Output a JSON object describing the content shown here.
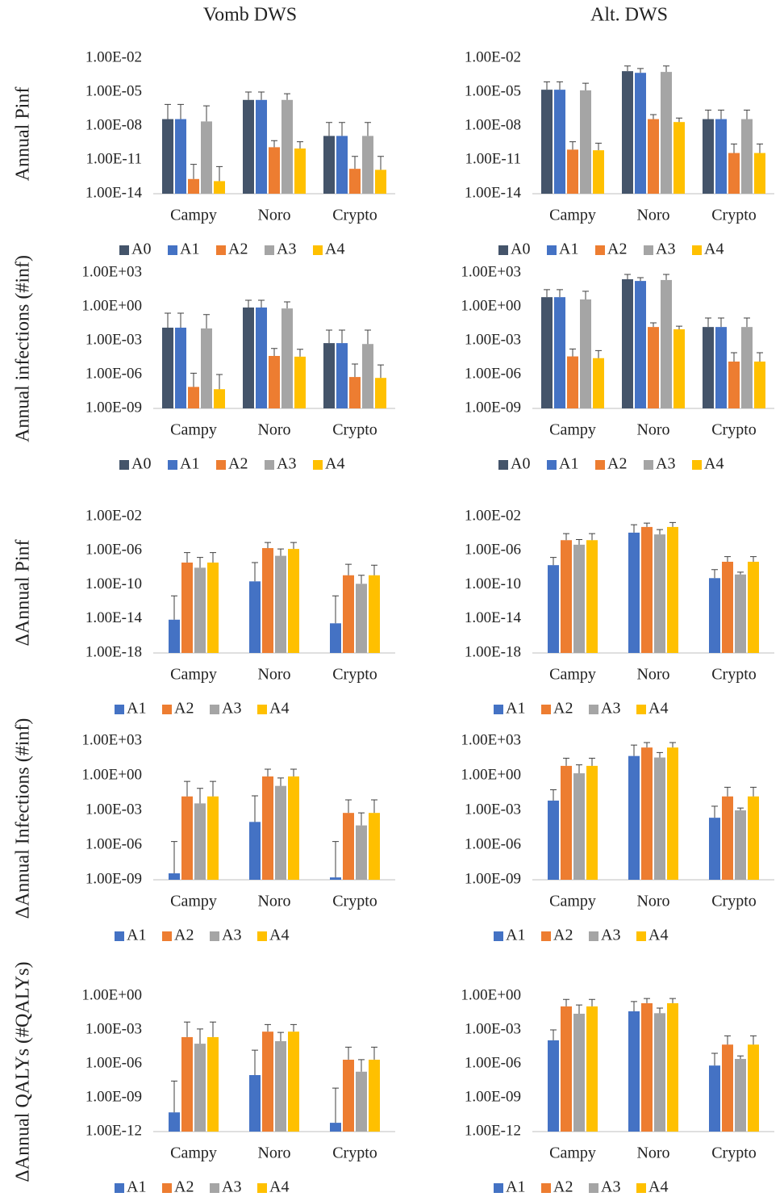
{
  "chart_data": [
    {
      "type": "bar",
      "title": "Vomb DWS",
      "ylabel": "Annual Pinf",
      "log_scale": true,
      "grid": false,
      "categories": [
        "Campy",
        "Noro",
        "Crypto"
      ],
      "ylim": [
        1e-14,
        0.01
      ],
      "yticks": [
        {
          "value": 1e-14,
          "label": "1.00E-14"
        },
        {
          "value": 1e-11,
          "label": "1.00E-11"
        },
        {
          "value": 1e-08,
          "label": "1.00E-08"
        },
        {
          "value": 1e-05,
          "label": "1.00E-05"
        },
        {
          "value": 0.01,
          "label": "1.00E-02"
        }
      ],
      "series": [
        {
          "name": "A0",
          "color": "#44546a",
          "values": [
            4e-08,
            2e-06,
            1.3e-09
          ],
          "error_upper": [
            8e-07,
            1e-05,
            2e-08
          ]
        },
        {
          "name": "A1",
          "color": "#4472c4",
          "values": [
            4e-08,
            2e-06,
            1.3e-09
          ],
          "error_upper": [
            8e-07,
            1e-05,
            2e-08
          ]
        },
        {
          "name": "A2",
          "color": "#ed7d31",
          "values": [
            2e-13,
            1.3e-10,
            1.6e-12
          ],
          "error_upper": [
            4e-12,
            5e-10,
            2e-11
          ]
        },
        {
          "name": "A3",
          "color": "#a5a5a5",
          "values": [
            2.5e-08,
            2e-06,
            1.3e-09
          ],
          "error_upper": [
            6e-07,
            7e-06,
            2e-08
          ]
        },
        {
          "name": "A4",
          "color": "#ffc000",
          "values": [
            1.3e-13,
            1e-10,
            1.3e-12
          ],
          "error_upper": [
            2.5e-12,
            4e-10,
            2e-11
          ]
        }
      ]
    },
    {
      "type": "bar",
      "title": "Alt. DWS",
      "log_scale": true,
      "grid": false,
      "categories": [
        "Campy",
        "Noro",
        "Crypto"
      ],
      "ylim": [
        1e-14,
        0.01
      ],
      "yticks": [
        {
          "value": 1e-14,
          "label": "1.00E-14"
        },
        {
          "value": 1e-11,
          "label": "1.00E-11"
        },
        {
          "value": 1e-08,
          "label": "1.00E-08"
        },
        {
          "value": 1e-05,
          "label": "1.00E-05"
        },
        {
          "value": 0.01,
          "label": "1.00E-02"
        }
      ],
      "series": [
        {
          "name": "A0",
          "color": "#44546a",
          "values": [
            1.6e-05,
            0.0007,
            4e-08
          ],
          "error_upper": [
            8e-05,
            0.002,
            2.5e-07
          ]
        },
        {
          "name": "A1",
          "color": "#4472c4",
          "values": [
            1.6e-05,
            0.0005,
            4e-08
          ],
          "error_upper": [
            8e-05,
            0.0012,
            2.5e-07
          ]
        },
        {
          "name": "A2",
          "color": "#ed7d31",
          "values": [
            8e-11,
            4e-08,
            4e-11
          ],
          "error_upper": [
            4e-10,
            1e-07,
            2.5e-10
          ]
        },
        {
          "name": "A3",
          "color": "#a5a5a5",
          "values": [
            1.4e-05,
            0.0006,
            4e-08
          ],
          "error_upper": [
            6e-05,
            0.002,
            2.5e-07
          ]
        },
        {
          "name": "A4",
          "color": "#ffc000",
          "values": [
            7e-11,
            2.2e-08,
            4e-11
          ],
          "error_upper": [
            3e-10,
            5e-08,
            2.5e-10
          ]
        }
      ]
    },
    {
      "type": "bar",
      "ylabel": "Annual infections (#inf)",
      "log_scale": true,
      "grid": false,
      "categories": [
        "Campy",
        "Noro",
        "Crypto"
      ],
      "ylim": [
        1e-09,
        1000
      ],
      "yticks": [
        {
          "value": 1e-09,
          "label": "1.00E-09"
        },
        {
          "value": 1e-06,
          "label": "1.00E-06"
        },
        {
          "value": 0.001,
          "label": "1.00E-03"
        },
        {
          "value": 1,
          "label": "1.00E+00"
        },
        {
          "value": 1000,
          "label": "1.00E+03"
        }
      ],
      "series": [
        {
          "name": "A0",
          "color": "#44546a",
          "values": [
            0.014,
            0.85,
            0.0006
          ],
          "error_upper": [
            0.27,
            3.7,
            0.0085
          ]
        },
        {
          "name": "A1",
          "color": "#4472c4",
          "values": [
            0.014,
            0.85,
            0.0006
          ],
          "error_upper": [
            0.27,
            3.7,
            0.0085
          ]
        },
        {
          "name": "A2",
          "color": "#ed7d31",
          "values": [
            8e-08,
            4.4e-05,
            6e-07
          ],
          "error_upper": [
            1.3e-06,
            0.0002,
            8.5e-06
          ]
        },
        {
          "name": "A3",
          "color": "#a5a5a5",
          "values": [
            0.012,
            0.7,
            0.0005
          ],
          "error_upper": [
            0.2,
            2.7,
            0.0085
          ]
        },
        {
          "name": "A4",
          "color": "#ffc000",
          "values": [
            5e-08,
            3.8e-05,
            5e-07
          ],
          "error_upper": [
            1e-06,
            0.00017,
            7e-06
          ]
        }
      ]
    },
    {
      "type": "bar",
      "log_scale": true,
      "grid": false,
      "categories": [
        "Campy",
        "Noro",
        "Crypto"
      ],
      "ylim": [
        1e-09,
        1000
      ],
      "yticks": [
        {
          "value": 1e-09,
          "label": "1.00E-09"
        },
        {
          "value": 1e-06,
          "label": "1.00E-06"
        },
        {
          "value": 0.001,
          "label": "1.00E-03"
        },
        {
          "value": 1,
          "label": "1.00E+00"
        },
        {
          "value": 1000,
          "label": "1.00E+03"
        }
      ],
      "series": [
        {
          "name": "A0",
          "color": "#44546a",
          "values": [
            7,
            270,
            0.016
          ],
          "error_upper": [
            32,
            720,
            0.1
          ]
        },
        {
          "name": "A1",
          "color": "#4472c4",
          "values": [
            7,
            190,
            0.016
          ],
          "error_upper": [
            32,
            370,
            0.1
          ]
        },
        {
          "name": "A2",
          "color": "#ed7d31",
          "values": [
            4e-05,
            0.016,
            1.4e-05
          ],
          "error_upper": [
            0.00018,
            0.037,
            8.5e-05
          ]
        },
        {
          "name": "A3",
          "color": "#a5a5a5",
          "values": [
            4.4,
            230,
            0.016
          ],
          "error_upper": [
            23,
            720,
            0.1
          ]
        },
        {
          "name": "A4",
          "color": "#ffc000",
          "values": [
            2.8e-05,
            0.01,
            1.4e-05
          ],
          "error_upper": [
            0.00013,
            0.019,
            8.5e-05
          ]
        }
      ]
    },
    {
      "type": "bar",
      "ylabel": "ΔAnnual Pinf",
      "log_scale": true,
      "grid": false,
      "categories": [
        "Campy",
        "Noro",
        "Crypto"
      ],
      "ylim": [
        1e-18,
        0.01
      ],
      "yticks": [
        {
          "value": 1e-18,
          "label": "1.00E-18"
        },
        {
          "value": 1e-14,
          "label": "1.00E-14"
        },
        {
          "value": 1e-10,
          "label": "1.00E-10"
        },
        {
          "value": 1e-06,
          "label": "1.00E-06"
        },
        {
          "value": 0.01,
          "label": "1.00E-02"
        }
      ],
      "series": [
        {
          "name": "A1",
          "color": "#4472c4",
          "values": [
            8e-15,
            2.5e-10,
            3e-15
          ],
          "error_upper": [
            5e-12,
            4e-08,
            5e-12
          ]
        },
        {
          "name": "A2",
          "color": "#ed7d31",
          "values": [
            4e-08,
            2e-06,
            1.3e-09
          ],
          "error_upper": [
            6e-07,
            9e-06,
            2.5e-08
          ]
        },
        {
          "name": "A3",
          "color": "#a5a5a5",
          "values": [
            1e-08,
            2.5e-07,
            1.3e-10
          ],
          "error_upper": [
            1.6e-07,
            1.6e-06,
            1.3e-09
          ]
        },
        {
          "name": "A4",
          "color": "#ffc000",
          "values": [
            4e-08,
            1.6e-06,
            1.3e-09
          ],
          "error_upper": [
            6e-07,
            9e-06,
            2e-08
          ]
        }
      ]
    },
    {
      "type": "bar",
      "log_scale": true,
      "grid": false,
      "categories": [
        "Campy",
        "Noro",
        "Crypto"
      ],
      "ylim": [
        1e-18,
        0.01
      ],
      "yticks": [
        {
          "value": 1e-18,
          "label": "1.00E-18"
        },
        {
          "value": 1e-14,
          "label": "1.00E-14"
        },
        {
          "value": 1e-10,
          "label": "1.00E-10"
        },
        {
          "value": 1e-06,
          "label": "1.00E-06"
        },
        {
          "value": 0.01,
          "label": "1.00E-02"
        }
      ],
      "series": [
        {
          "name": "A1",
          "color": "#4472c4",
          "values": [
            2e-08,
            0.00013,
            6e-10
          ],
          "error_upper": [
            1.6e-07,
            0.0011,
            6e-09
          ]
        },
        {
          "name": "A2",
          "color": "#ed7d31",
          "values": [
            1.7e-05,
            0.0006,
            5e-08
          ],
          "error_upper": [
            0.0001,
            0.0017,
            2e-07
          ]
        },
        {
          "name": "A3",
          "color": "#a5a5a5",
          "values": [
            5e-06,
            8e-05,
            1.6e-09
          ],
          "error_upper": [
            2e-05,
            0.0003,
            3e-09
          ]
        },
        {
          "name": "A4",
          "color": "#ffc000",
          "values": [
            1.7e-05,
            0.0006,
            5e-08
          ],
          "error_upper": [
            0.0001,
            0.002,
            2e-07
          ]
        }
      ]
    },
    {
      "type": "bar",
      "ylabel": "ΔAnnual Infections (#inf)",
      "log_scale": true,
      "grid": false,
      "categories": [
        "Campy",
        "Noro",
        "Crypto"
      ],
      "ylim": [
        1e-09,
        1000
      ],
      "yticks": [
        {
          "value": 1e-09,
          "label": "1.00E-09"
        },
        {
          "value": 1e-06,
          "label": "1.00E-06"
        },
        {
          "value": 0.001,
          "label": "1.00E-03"
        },
        {
          "value": 1,
          "label": "1.00E+00"
        },
        {
          "value": 1000,
          "label": "1.00E+03"
        }
      ],
      "series": [
        {
          "name": "A1",
          "color": "#4472c4",
          "values": [
            3.6e-09,
            0.0001,
            1.6e-09
          ],
          "error_upper": [
            2e-06,
            0.018,
            2e-06
          ]
        },
        {
          "name": "A2",
          "color": "#ed7d31",
          "values": [
            0.016,
            0.85,
            0.0006
          ],
          "error_upper": [
            0.32,
            3.6,
            0.008
          ]
        },
        {
          "name": "A3",
          "color": "#a5a5a5",
          "values": [
            0.004,
            0.13,
            5e-05
          ],
          "error_upper": [
            0.08,
            0.63,
            0.0006
          ]
        },
        {
          "name": "A4",
          "color": "#ffc000",
          "values": [
            0.016,
            0.85,
            0.0006
          ],
          "error_upper": [
            0.32,
            3.6,
            0.008
          ]
        }
      ]
    },
    {
      "type": "bar",
      "log_scale": true,
      "grid": false,
      "categories": [
        "Campy",
        "Noro",
        "Crypto"
      ],
      "ylim": [
        1e-09,
        1000
      ],
      "yticks": [
        {
          "value": 1e-09,
          "label": "1.00E-09"
        },
        {
          "value": 1e-06,
          "label": "1.00E-06"
        },
        {
          "value": 0.001,
          "label": "1.00E-03"
        },
        {
          "value": 1,
          "label": "1.00E+00"
        },
        {
          "value": 1000,
          "label": "1.00E+03"
        }
      ],
      "series": [
        {
          "name": "A1",
          "color": "#4472c4",
          "values": [
            0.007,
            50,
            0.00023
          ],
          "error_upper": [
            0.06,
            440,
            0.0023
          ]
        },
        {
          "name": "A2",
          "color": "#ed7d31",
          "values": [
            7,
            270,
            0.016
          ],
          "error_upper": [
            32,
            720,
            0.1
          ]
        },
        {
          "name": "A3",
          "color": "#a5a5a5",
          "values": [
            1.6,
            37,
            0.001
          ],
          "error_upper": [
            8.5,
            100,
            0.0016
          ]
        },
        {
          "name": "A4",
          "color": "#ffc000",
          "values": [
            7,
            270,
            0.016
          ],
          "error_upper": [
            32,
            720,
            0.1
          ]
        }
      ]
    },
    {
      "type": "bar",
      "ylabel": "ΔAnnual QALYs (#QALYs)",
      "log_scale": true,
      "grid": false,
      "categories": [
        "Campy",
        "Noro",
        "Crypto"
      ],
      "ylim": [
        1e-12,
        1
      ],
      "yticks": [
        {
          "value": 1e-12,
          "label": "1.00E-12"
        },
        {
          "value": 1e-09,
          "label": "1.00E-09"
        },
        {
          "value": 1e-06,
          "label": "1.00E-06"
        },
        {
          "value": 0.001,
          "label": "1.00E-03"
        },
        {
          "value": 1,
          "label": "1.00E+00"
        }
      ],
      "series": [
        {
          "name": "A1",
          "color": "#4472c4",
          "values": [
            5e-11,
            1e-07,
            6e-12
          ],
          "error_upper": [
            3e-08,
            1.6e-05,
            7e-09
          ]
        },
        {
          "name": "A2",
          "color": "#ed7d31",
          "values": [
            0.00023,
            0.0007,
            2.3e-06
          ],
          "error_upper": [
            0.005,
            0.003,
            3e-05
          ]
        },
        {
          "name": "A3",
          "color": "#a5a5a5",
          "values": [
            6e-05,
            0.0001,
            2e-07
          ],
          "error_upper": [
            0.0012,
            0.0006,
            2.3e-06
          ]
        },
        {
          "name": "A4",
          "color": "#ffc000",
          "values": [
            0.00023,
            0.0007,
            2.3e-06
          ],
          "error_upper": [
            0.005,
            0.003,
            3e-05
          ]
        }
      ]
    },
    {
      "type": "bar",
      "log_scale": true,
      "grid": false,
      "categories": [
        "Campy",
        "Noro",
        "Crypto"
      ],
      "ylim": [
        1e-12,
        1
      ],
      "yticks": [
        {
          "value": 1e-12,
          "label": "1.00E-12"
        },
        {
          "value": 1e-09,
          "label": "1.00E-09"
        },
        {
          "value": 1e-06,
          "label": "1.00E-06"
        },
        {
          "value": 0.001,
          "label": "1.00E-03"
        },
        {
          "value": 1,
          "label": "1.00E+00"
        }
      ],
      "series": [
        {
          "name": "A1",
          "color": "#4472c4",
          "values": [
            0.00012,
            0.044,
            7e-07
          ],
          "error_upper": [
            0.001,
            0.32,
            8.5e-06
          ]
        },
        {
          "name": "A2",
          "color": "#ed7d31",
          "values": [
            0.12,
            0.23,
            5e-05
          ],
          "error_upper": [
            0.5,
            0.6,
            0.0003
          ]
        },
        {
          "name": "A3",
          "color": "#a5a5a5",
          "values": [
            0.027,
            0.03,
            2.7e-06
          ],
          "error_upper": [
            0.16,
            0.085,
            5e-06
          ]
        },
        {
          "name": "A4",
          "color": "#ffc000",
          "values": [
            0.12,
            0.23,
            5e-05
          ],
          "error_upper": [
            0.5,
            0.6,
            0.0003
          ]
        }
      ]
    }
  ]
}
